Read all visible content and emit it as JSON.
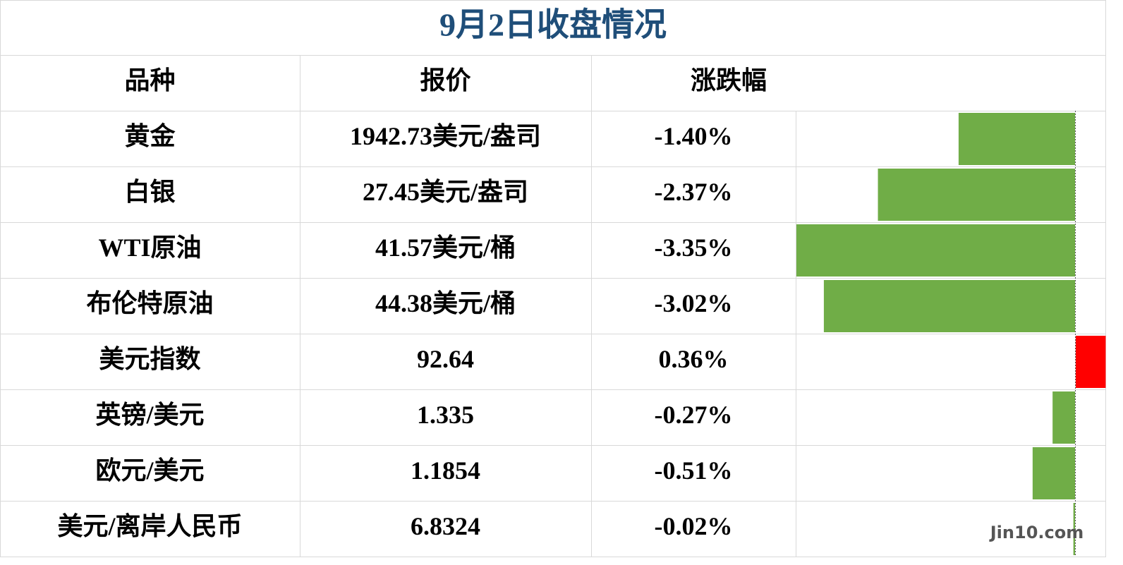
{
  "title": "9月2日收盘情况",
  "table": {
    "header": [
      "品种",
      "报价",
      "涨跌幅"
    ],
    "rows": [
      [
        "黄金",
        "1942.73美元/盎司",
        {
          "value": -1.4,
          "label": "-1.40%"
        }
      ],
      [
        "白银",
        "27.45美元/盎司",
        {
          "value": -2.37,
          "label": "-2.37%"
        }
      ],
      [
        "WTI原油",
        "41.57美元/桶",
        {
          "value": -3.35,
          "label": "-3.35%"
        }
      ],
      [
        "布伦特原油",
        "44.38美元/桶",
        {
          "value": -3.02,
          "label": "-3.02%"
        }
      ],
      [
        "美元指数",
        "92.64",
        {
          "value": 0.36,
          "label": "0.36%"
        }
      ],
      [
        "英镑/美元",
        "1.335",
        {
          "value": -0.27,
          "label": "-0.27%"
        }
      ],
      [
        "欧元/美元",
        "1.1854",
        {
          "value": -0.51,
          "label": "-0.51%"
        }
      ],
      [
        "美元/离岸人民币",
        "6.8324",
        {
          "value": -0.02,
          "label": "-0.02%"
        }
      ]
    ]
  },
  "bar_colors": {
    "up": "#ff0000",
    "down": "#70ad47"
  },
  "watermark": "Jin10.com"
}
